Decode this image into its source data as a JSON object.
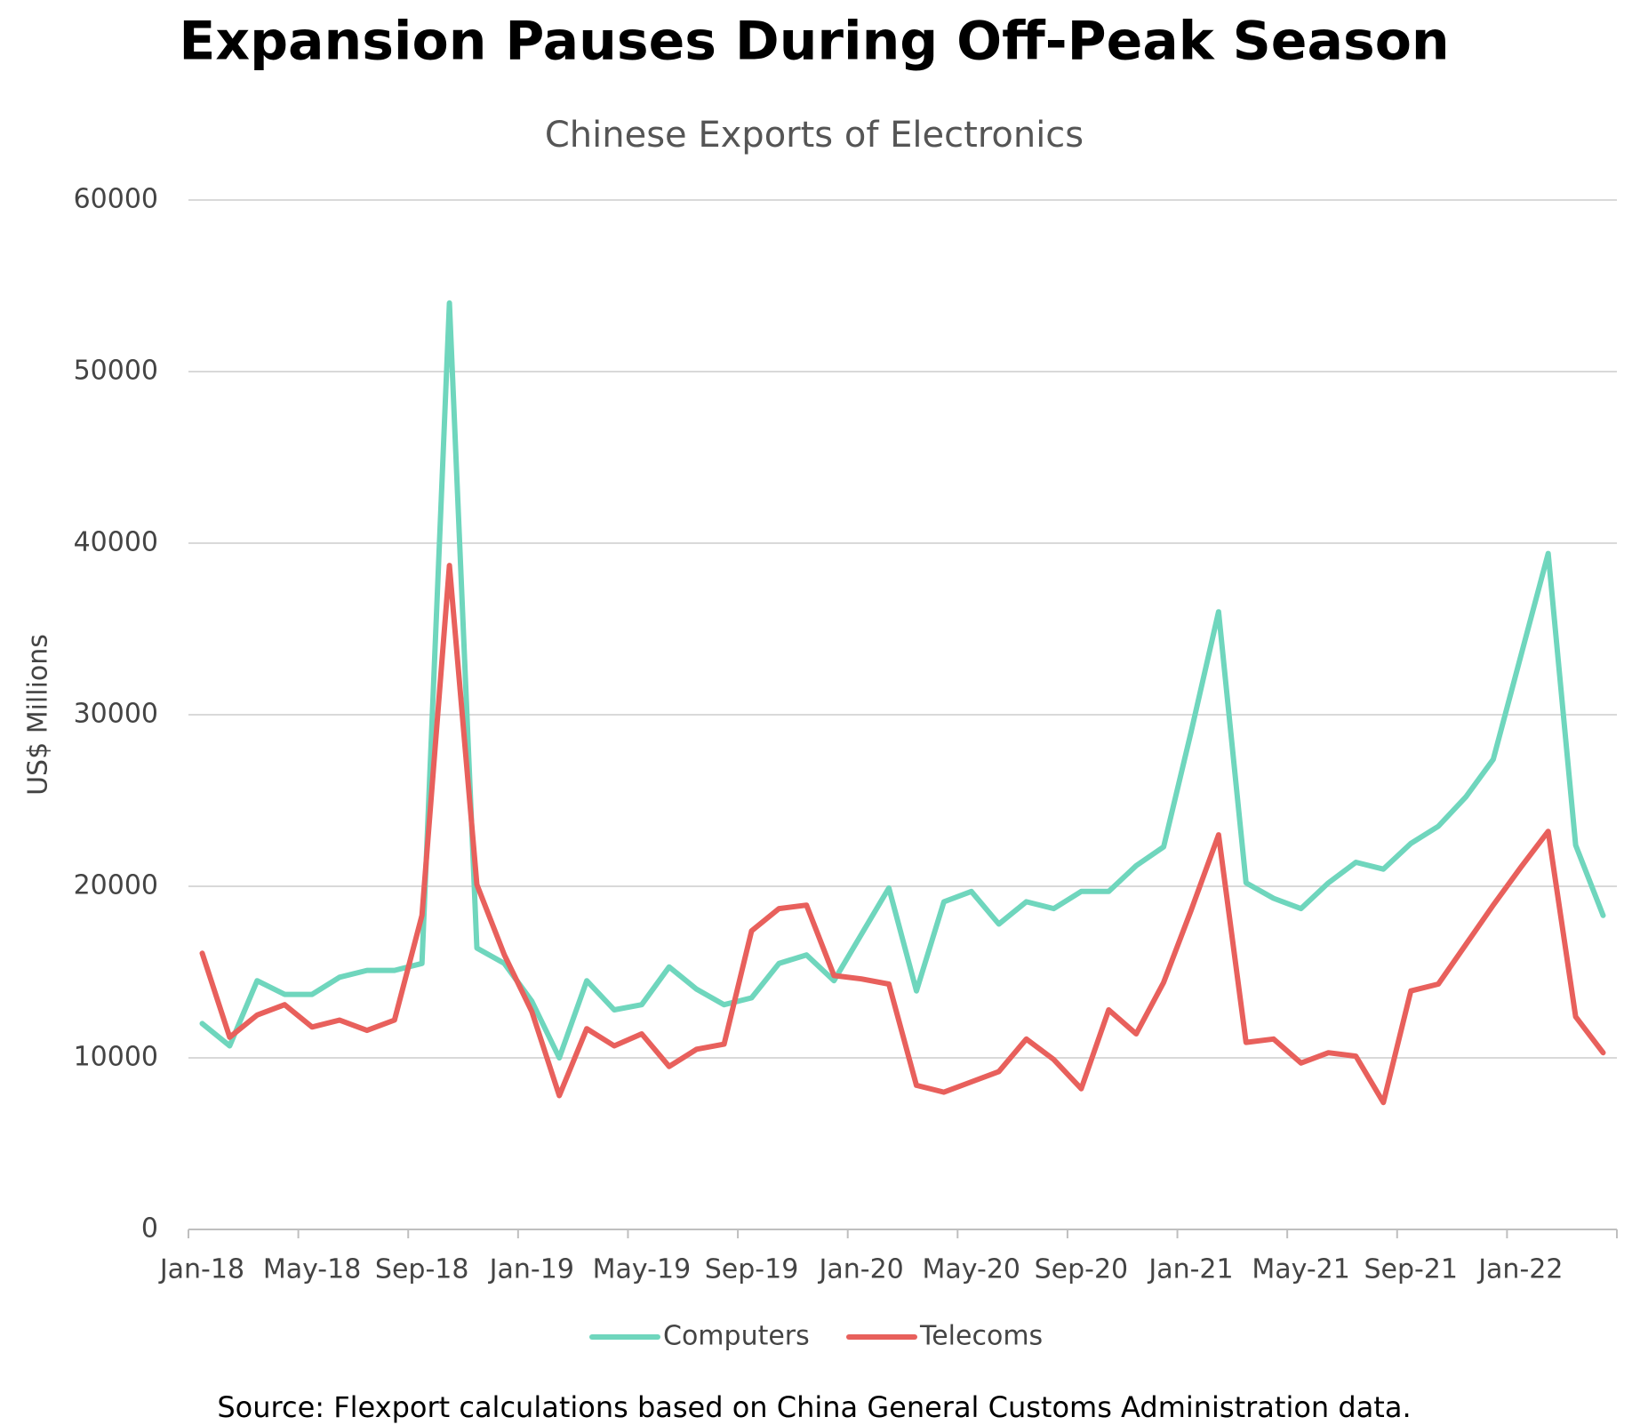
{
  "chart_data": {
    "type": "line",
    "title": "Expansion Pauses During Off-Peak Season",
    "subtitle": "Chinese Exports of Electronics",
    "y_label": "US$ Millions",
    "source": "Source: Flexport calculations based on China General Customs Administration data.",
    "categories": [
      "Jan-18",
      null,
      null,
      null,
      "May-18",
      null,
      null,
      null,
      "Sep-18",
      null,
      null,
      null,
      "Jan-19",
      null,
      null,
      null,
      "May-19",
      null,
      null,
      null,
      "Sep-19",
      null,
      null,
      null,
      "Jan-20",
      null,
      null,
      null,
      "May-20",
      null,
      null,
      null,
      "Sep-20",
      null,
      null,
      null,
      "Jan-21",
      null,
      null,
      null,
      "May-21",
      null,
      null,
      null,
      "Sep-21",
      null,
      null,
      null,
      "Jan-22",
      null,
      null,
      null
    ],
    "series": [
      {
        "name": "Computers",
        "color": "#6fd6bd",
        "values": [
          12000,
          10700,
          14500,
          13700,
          13700,
          14700,
          15100,
          15100,
          15500,
          54000,
          16400,
          15500,
          13300,
          10000,
          14500,
          12800,
          13100,
          15300,
          14000,
          13100,
          13500,
          15500,
          16000,
          14500,
          17200,
          19900,
          13900,
          19100,
          19700,
          17800,
          19100,
          18700,
          19700,
          19700,
          21200,
          22300,
          29000,
          36000,
          20200,
          19300,
          18700,
          20200,
          21400,
          21000,
          22500,
          23500,
          25200,
          27400,
          33400,
          39400,
          22400,
          18300
        ]
      },
      {
        "name": "Telecoms",
        "color": "#e8605c",
        "values": [
          16100,
          11200,
          12500,
          13100,
          11800,
          12200,
          11600,
          12200,
          18300,
          38700,
          20100,
          16000,
          12700,
          7800,
          11700,
          10700,
          11400,
          9500,
          10500,
          10800,
          17400,
          18700,
          18900,
          14800,
          14600,
          14300,
          8400,
          8000,
          8600,
          9200,
          11100,
          9900,
          8200,
          12800,
          11400,
          14400,
          18600,
          23000,
          10900,
          11100,
          9700,
          10300,
          10100,
          7400,
          13900,
          14300,
          16600,
          18900,
          21100,
          23200,
          12400,
          10300
        ]
      }
    ],
    "ylim": [
      0,
      60000
    ],
    "yticks": [
      0,
      10000,
      20000,
      30000,
      40000,
      50000,
      60000
    ],
    "grid": true,
    "legend": "bottom"
  }
}
